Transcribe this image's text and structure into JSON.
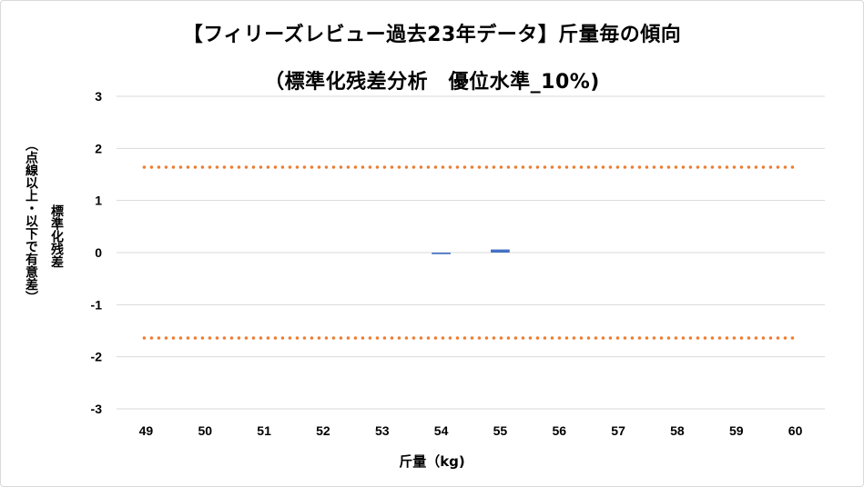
{
  "chart_data": {
    "type": "bar",
    "title": "【フィリーズレビュー過去23年データ】斤量毎の傾向",
    "subtitle": "（標準化残差分析　優位水準_10%)",
    "xlabel": "斤量（kg)",
    "ylabel_line1": "標準化残差",
    "ylabel_line2": "（点線以上・以下で有意差）",
    "categories": [
      "49",
      "50",
      "51",
      "52",
      "53",
      "54",
      "55",
      "56",
      "57",
      "58",
      "59",
      "60"
    ],
    "values": [
      null,
      null,
      null,
      null,
      null,
      -0.03,
      0.06,
      null,
      null,
      null,
      null,
      null
    ],
    "ylim": [
      -3,
      3
    ],
    "yticks": [
      "3",
      "2",
      "1",
      "0",
      "-1",
      "-2",
      "-3"
    ],
    "threshold_upper": 1.64,
    "threshold_lower": -1.64,
    "grid": true,
    "colors": {
      "bar": "#4472c4",
      "threshold": "#ed7d31",
      "grid": "#d9d9d9"
    }
  }
}
